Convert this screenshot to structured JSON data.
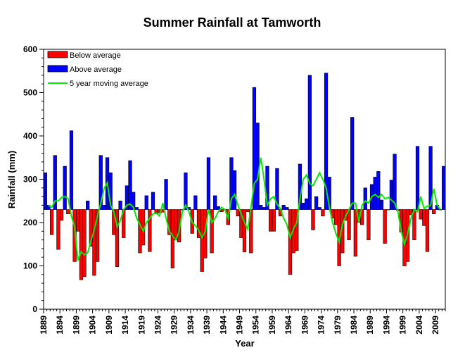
{
  "chart_data": {
    "type": "bar",
    "title": "Summer Rainfall at Tamworth",
    "xlabel": "Year",
    "ylabel": "Rainfall (mm)",
    "ylim": [
      0,
      600
    ],
    "yticks": [
      0,
      100,
      200,
      300,
      400,
      500,
      600
    ],
    "xlim": [
      1889,
      2012
    ],
    "xticks": [
      1889,
      1894,
      1899,
      1904,
      1909,
      1914,
      1919,
      1924,
      1929,
      1934,
      1939,
      1944,
      1949,
      1954,
      1959,
      1964,
      1969,
      1974,
      1979,
      1984,
      1989,
      1994,
      1999,
      2004,
      2009
    ],
    "baseline": 230,
    "legend": {
      "placement": "top-left",
      "entries": [
        {
          "label": "Below average",
          "color": "#ff0000"
        },
        {
          "label": "Above average",
          "color": "#0000ff"
        },
        {
          "label": "5 year moving average",
          "color": "#00ee00"
        }
      ]
    },
    "years": [
      1889,
      1890,
      1891,
      1892,
      1893,
      1894,
      1895,
      1896,
      1897,
      1898,
      1899,
      1900,
      1901,
      1902,
      1903,
      1904,
      1905,
      1906,
      1907,
      1908,
      1909,
      1910,
      1911,
      1912,
      1913,
      1914,
      1915,
      1916,
      1917,
      1918,
      1919,
      1920,
      1921,
      1922,
      1923,
      1924,
      1925,
      1926,
      1927,
      1928,
      1929,
      1930,
      1931,
      1932,
      1933,
      1934,
      1935,
      1936,
      1937,
      1938,
      1939,
      1940,
      1941,
      1942,
      1943,
      1944,
      1945,
      1946,
      1947,
      1948,
      1949,
      1950,
      1951,
      1952,
      1953,
      1954,
      1955,
      1956,
      1957,
      1958,
      1959,
      1960,
      1961,
      1962,
      1963,
      1964,
      1965,
      1966,
      1967,
      1968,
      1969,
      1970,
      1971,
      1972,
      1973,
      1974,
      1975,
      1976,
      1977,
      1978,
      1979,
      1980,
      1981,
      1982,
      1983,
      1984,
      1985,
      1986,
      1987,
      1988,
      1989,
      1990,
      1991,
      1992,
      1993,
      1994,
      1995,
      1996,
      1997,
      1998,
      1999,
      2000,
      2001,
      2002,
      2003,
      2004,
      2005,
      2006,
      2007,
      2008,
      2009,
      2010,
      2011
    ],
    "values": [
      315,
      240,
      172,
      355,
      138,
      205,
      330,
      220,
      412,
      110,
      180,
      68,
      75,
      250,
      145,
      78,
      110,
      355,
      240,
      350,
      315,
      172,
      98,
      250,
      165,
      285,
      343,
      270,
      235,
      130,
      148,
      262,
      133,
      270,
      220,
      222,
      224,
      300,
      172,
      95,
      160,
      155,
      230,
      315,
      235,
      175,
      262,
      165,
      87,
      118,
      350,
      130,
      262,
      237,
      225,
      230,
      195,
      350,
      320,
      215,
      165,
      132,
      225,
      130,
      512,
      430,
      240,
      235,
      330,
      180,
      180,
      325,
      215,
      240,
      235,
      80,
      130,
      135,
      335,
      245,
      255,
      540,
      183,
      260,
      235,
      215,
      545,
      305,
      210,
      195,
      100,
      130,
      205,
      160,
      443,
      122,
      200,
      195,
      280,
      160,
      288,
      305,
      318,
      252,
      152,
      230,
      298,
      358,
      228,
      178,
      100,
      110,
      218,
      160,
      376,
      208,
      193,
      133,
      376,
      220,
      240,
      230,
      330
    ],
    "moving_average": [
      null,
      240,
      235,
      250,
      250,
      258,
      260,
      255,
      215,
      190,
      112,
      133,
      125,
      130,
      158,
      183,
      215,
      245,
      278,
      292,
      240,
      225,
      190,
      205,
      230,
      240,
      243,
      235,
      210,
      195,
      180,
      200,
      210,
      220,
      222,
      215,
      245,
      210,
      180,
      170,
      160,
      180,
      225,
      240,
      225,
      200,
      193,
      182,
      165,
      180,
      230,
      200,
      210,
      225,
      235,
      230,
      210,
      255,
      265,
      240,
      220,
      200,
      185,
      235,
      290,
      300,
      350,
      300,
      240,
      255,
      260,
      242,
      232,
      210,
      195,
      165,
      185,
      200,
      255,
      300,
      310,
      290,
      285,
      300,
      315,
      300,
      280,
      235,
      200,
      175,
      155,
      195,
      215,
      230,
      245,
      245,
      200,
      240,
      250,
      245,
      260,
      265,
      258,
      265,
      255,
      258,
      252,
      245,
      225,
      180,
      150,
      175,
      210,
      230,
      225,
      260,
      232,
      238,
      240,
      278,
      240,
      230,
      null
    ]
  }
}
